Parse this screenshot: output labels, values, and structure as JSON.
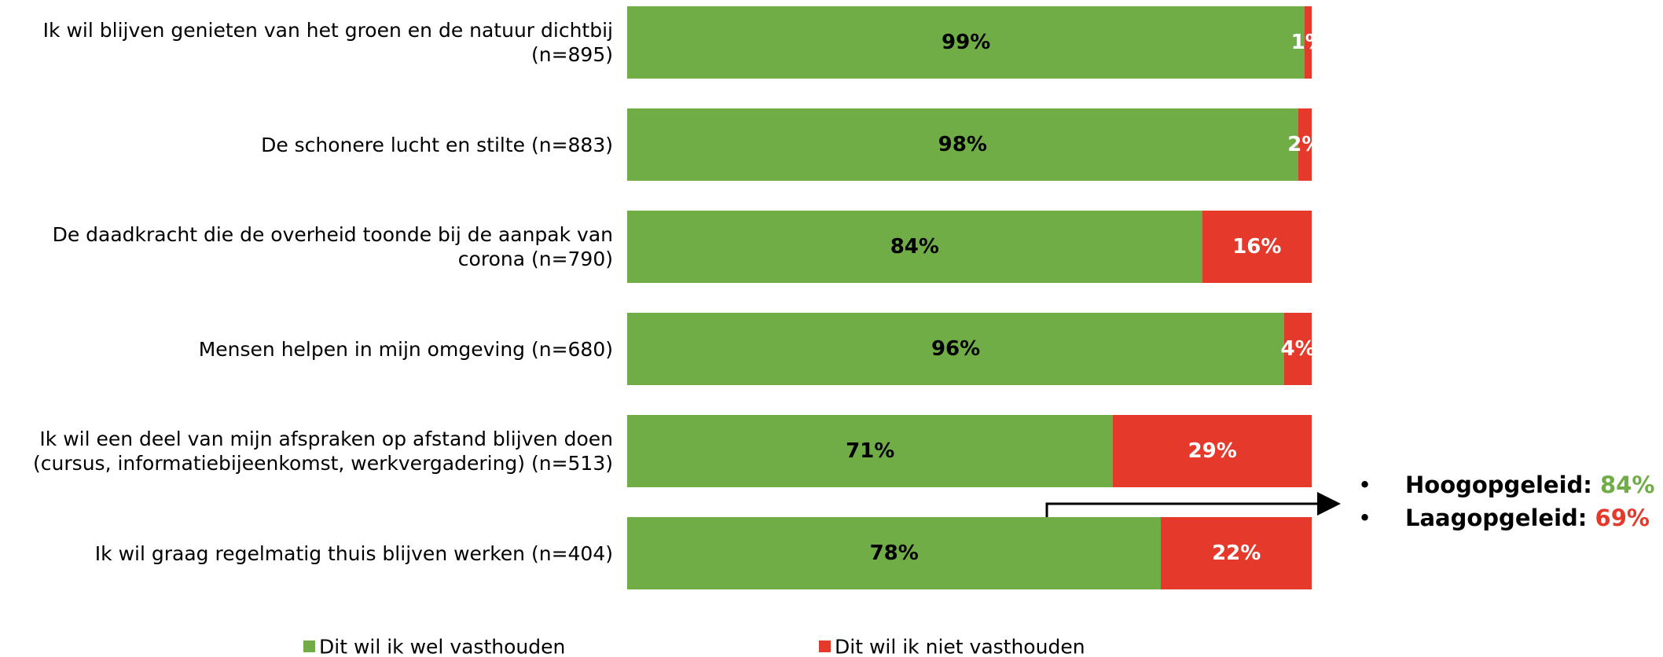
{
  "chart_data": {
    "type": "stacked-barh",
    "categories": [
      "Ik wil blijven genieten van het groen en de natuur dichtbij (n=895)",
      "De schonere lucht en stilte (n=883)",
      "De daadkracht die de overheid toonde bij de aanpak van corona (n=790)",
      "Mensen helpen in mijn omgeving (n=680)",
      "Ik wil een deel van mijn afspraken op afstand blijven doen (cursus, informatiebijeenkomst, werkvergadering) (n=513)",
      "Ik wil graag regelmatig thuis blijven werken (n=404)"
    ],
    "series": [
      {
        "name": "Dit wil ik wel vasthouden",
        "color": "#70ad47",
        "label_color": "#000000",
        "values": [
          99,
          98,
          84,
          96,
          71,
          78
        ],
        "value_labels": [
          "99%",
          "98%",
          "84%",
          "96%",
          "71%",
          "78%"
        ]
      },
      {
        "name": "Dit wil ik niet vasthouden",
        "color": "#e53a2b",
        "label_color": "#ffffff",
        "values": [
          1,
          2,
          16,
          4,
          29,
          22
        ],
        "value_labels": [
          "1%",
          "2%",
          "16%",
          "4%",
          "29%",
          "22%"
        ]
      }
    ],
    "xlim": [
      0,
      100
    ],
    "legend": "bottom",
    "annotations": [
      {
        "text": "Hoogopgeleid:",
        "value_label": "84%",
        "color": "#70ad47"
      },
      {
        "text": "Laagopgeleid:",
        "value_label": "69%",
        "color": "#e53a2b"
      }
    ]
  }
}
